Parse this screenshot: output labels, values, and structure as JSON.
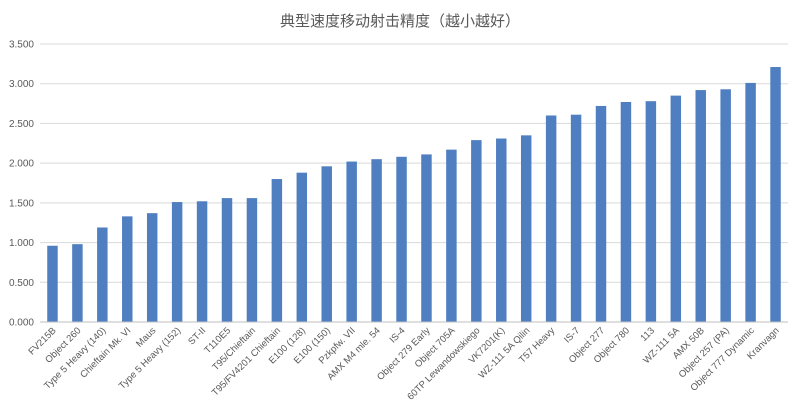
{
  "chart_data": {
    "type": "bar",
    "title": "典型速度移动射击精度（越小越好）",
    "xlabel": "",
    "ylabel": "",
    "ylim": [
      0,
      3.5
    ],
    "yticks": [
      "0.000",
      "0.500",
      "1.000",
      "1.500",
      "2.000",
      "2.500",
      "3.000",
      "3.500"
    ],
    "grid": true,
    "legend": "none",
    "bar_color": "#4F7FC0",
    "categories": [
      "FV215B",
      "Object 260",
      "Type 5 Heavy (140)",
      "Chieftain Mk. VI",
      "Maus",
      "Type 5 Heavy (152)",
      "ST-II",
      "T110E5",
      "T95/Chieftain",
      "T95/FV4201 Chieftain",
      "E100 (128)",
      "E100 (150)",
      "Pzkpfw. VII",
      "AMX M4 mle. 54",
      "IS-4",
      "Object 279 Early",
      "Object 705A",
      "60TP Lewandowskiego",
      "VK7201(K)",
      "WZ-111 5A Qilin",
      "T57 Heavy",
      "IS-7",
      "Object 277",
      "Object 780",
      "113",
      "WZ-111 5A",
      "AMX 50B",
      "Object 257 (PA)",
      "Object 777 Dynamic",
      "Kranvagn"
    ],
    "values": [
      0.96,
      0.98,
      1.19,
      1.33,
      1.37,
      1.51,
      1.52,
      1.56,
      1.56,
      1.8,
      1.88,
      1.96,
      2.02,
      2.05,
      2.08,
      2.11,
      2.17,
      2.29,
      2.31,
      2.35,
      2.6,
      2.61,
      2.72,
      2.77,
      2.78,
      2.85,
      2.92,
      2.93,
      3.01,
      3.21
    ]
  }
}
